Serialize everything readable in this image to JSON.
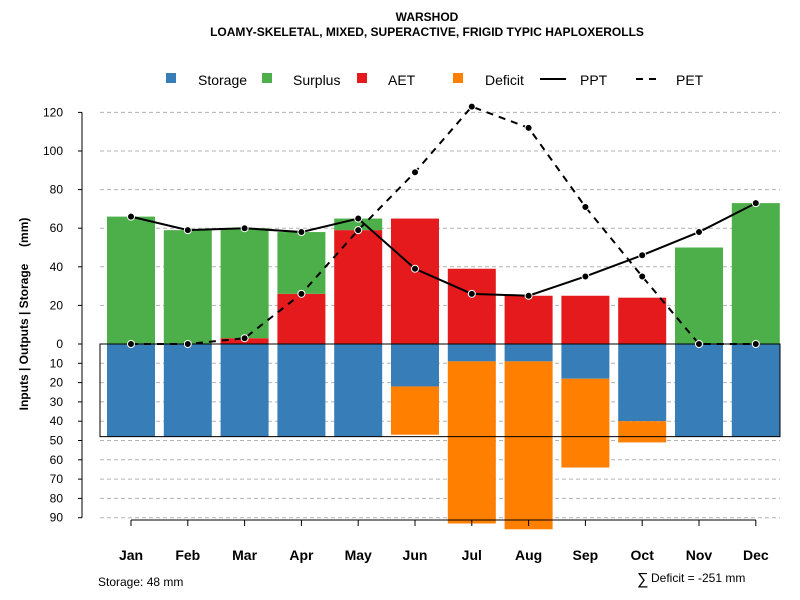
{
  "chart_data": {
    "type": "bar",
    "title": "WARSHOD",
    "subtitle": "LOAMY-SKELETAL, MIXED, SUPERACTIVE, FRIGID TYPIC HAPLOXEROLLS",
    "ylabel": "Inputs | Outputs | Storage     (mm)",
    "categories": [
      "Jan",
      "Feb",
      "Mar",
      "Apr",
      "May",
      "Jun",
      "Jul",
      "Aug",
      "Sep",
      "Oct",
      "Nov",
      "Dec"
    ],
    "upper_ticks": [
      "0",
      "20",
      "40",
      "60",
      "80",
      "100",
      "120"
    ],
    "lower_ticks": [
      "10",
      "20",
      "30",
      "40",
      "50",
      "60",
      "70",
      "80",
      "90"
    ],
    "upper_tick_values": [
      0,
      20,
      40,
      60,
      80,
      100,
      120
    ],
    "lower_tick_values": [
      10,
      20,
      30,
      40,
      50,
      60,
      70,
      80,
      90
    ],
    "ylim_upper": [
      0,
      130
    ],
    "ylim_lower": [
      0,
      92
    ],
    "colors": {
      "storage": "#377EB8",
      "surplus": "#4DAF4A",
      "aet": "#E41A1C",
      "deficit": "#FF7F00",
      "grid": "#b3b3b3"
    },
    "legend": {
      "storage": "Storage",
      "surplus": "Surplus",
      "aet": "AET",
      "deficit": "Deficit",
      "ppt": "PPT",
      "pet": "PET"
    },
    "series": [
      {
        "name": "AET",
        "values": [
          0,
          0,
          3,
          26,
          59,
          65,
          39,
          25,
          25,
          24,
          0,
          0
        ]
      },
      {
        "name": "Surplus",
        "values": [
          66,
          59,
          57,
          32,
          6,
          0,
          0,
          0,
          0,
          0,
          50,
          73
        ]
      },
      {
        "name": "Storage",
        "values": [
          48,
          48,
          48,
          48,
          48,
          22,
          9,
          9,
          18,
          40,
          48,
          48
        ]
      },
      {
        "name": "Deficit",
        "values": [
          0,
          0,
          0,
          0,
          0,
          25,
          84,
          87,
          46,
          11,
          0,
          0
        ]
      },
      {
        "name": "PPT",
        "values": [
          66,
          59,
          60,
          58,
          65,
          39,
          26,
          25,
          35,
          46,
          58,
          73
        ]
      },
      {
        "name": "PET",
        "values": [
          0,
          0,
          3,
          26,
          59,
          89,
          123,
          112,
          71,
          35,
          0,
          0
        ]
      }
    ],
    "storage_capacity": 48
  },
  "footer": {
    "storage_text": "Storage: 48 mm",
    "deficit_symbol": "∑",
    "deficit_text": "Deficit = -251 mm"
  }
}
